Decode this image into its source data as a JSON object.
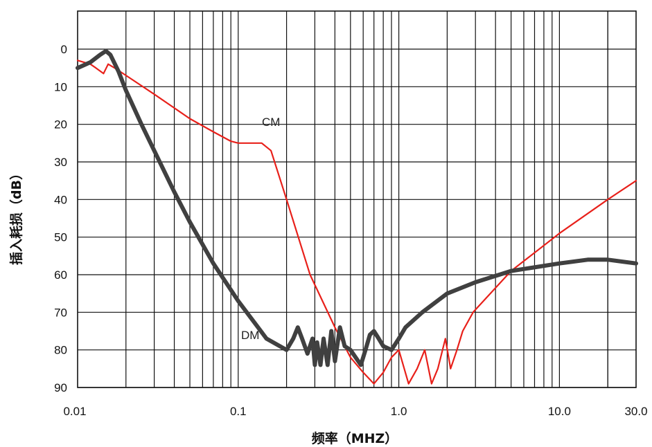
{
  "chart_data": {
    "type": "line",
    "title": "",
    "xlabel": "频率（MHZ）",
    "ylabel": "插入耗损（dB）",
    "x_scale": "log",
    "xlim": [
      0.01,
      30.0
    ],
    "ylim": [
      0,
      90
    ],
    "y_inverted": true,
    "x_tick_labels": [
      "0.01",
      "0.1",
      "1.0",
      "10.0",
      "30.0"
    ],
    "x_tick_values": [
      0.01,
      0.1,
      1.0,
      10.0,
      30.0
    ],
    "y_ticks": [
      0,
      10,
      20,
      30,
      40,
      50,
      60,
      70,
      80,
      90
    ],
    "grid": true,
    "legend": "none",
    "series": [
      {
        "name": "CM",
        "color": "#e8201a",
        "x": [
          0.01,
          0.012,
          0.013,
          0.0145,
          0.0155,
          0.017,
          0.02,
          0.03,
          0.05,
          0.07,
          0.09,
          0.1,
          0.12,
          0.14,
          0.16,
          0.2,
          0.28,
          0.4,
          0.5,
          0.6,
          0.7,
          0.8,
          0.9,
          1.0,
          1.15,
          1.3,
          1.45,
          1.6,
          1.75,
          1.95,
          2.1,
          2.3,
          2.5,
          2.9,
          5.0,
          10.0,
          20.0,
          30.0
        ],
        "y": [
          3,
          4,
          5,
          6.5,
          4,
          5,
          7,
          12,
          18.5,
          22,
          24.5,
          25,
          25,
          25,
          27,
          40,
          60,
          74,
          82,
          86,
          89,
          86,
          82,
          80,
          89,
          85,
          80,
          89,
          85,
          77,
          85,
          80,
          75,
          70,
          59,
          49,
          40,
          35
        ]
      },
      {
        "name": "DM",
        "color": "#404040",
        "x": [
          0.01,
          0.012,
          0.0138,
          0.015,
          0.016,
          0.018,
          0.02,
          0.025,
          0.03,
          0.04,
          0.05,
          0.07,
          0.1,
          0.15,
          0.2,
          0.22,
          0.235,
          0.25,
          0.27,
          0.29,
          0.3,
          0.31,
          0.325,
          0.34,
          0.36,
          0.38,
          0.4,
          0.43,
          0.46,
          0.5,
          0.58,
          0.62,
          0.66,
          0.7,
          0.75,
          0.8,
          0.9,
          1.0,
          1.1,
          1.4,
          2.0,
          3.0,
          5.0,
          10.0,
          15.0,
          20.0,
          30.0
        ],
        "y": [
          5,
          3.5,
          1.5,
          0.5,
          1.5,
          6,
          11,
          20,
          27,
          38,
          46,
          57,
          67,
          77,
          80,
          77,
          74,
          77,
          81,
          77,
          84,
          78,
          84,
          77,
          84,
          75,
          83,
          74,
          79,
          80,
          84,
          80,
          76,
          75,
          77,
          79,
          80,
          77,
          74,
          70,
          65,
          62,
          59,
          57,
          56,
          56,
          57
        ]
      }
    ]
  }
}
